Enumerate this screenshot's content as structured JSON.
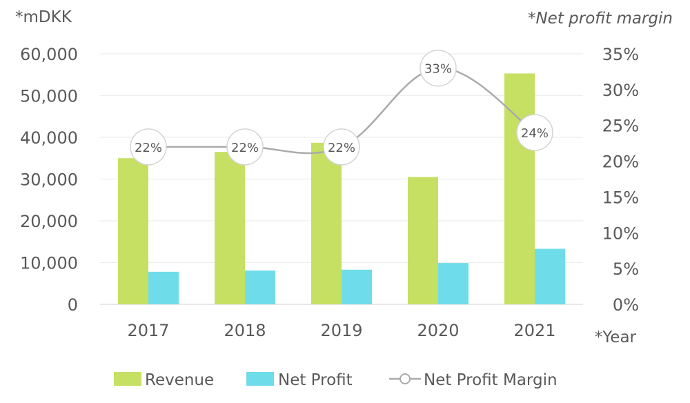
{
  "chart_data": {
    "type": "bar",
    "categories": [
      "2017",
      "2018",
      "2019",
      "2020",
      "2021"
    ],
    "series": [
      {
        "name": "Revenue",
        "type": "bar",
        "axis": "left",
        "color": "#c5e063",
        "values": [
          35000,
          36500,
          38700,
          30500,
          55300
        ]
      },
      {
        "name": "Net Profit",
        "type": "bar",
        "axis": "left",
        "color": "#6fdde9",
        "values": [
          7800,
          8100,
          8300,
          9900,
          13300
        ]
      },
      {
        "name": "Net Profit Margin",
        "type": "line",
        "axis": "right",
        "color": "#aaaaaa",
        "values": [
          22,
          22,
          22,
          33,
          24
        ]
      }
    ],
    "data_labels": [
      "22%",
      "22%",
      "22%",
      "33%",
      "24%"
    ],
    "y_left": {
      "label": "*mDKK",
      "ylim": [
        0,
        60000
      ],
      "ticks": [
        "0",
        "10,000",
        "20,000",
        "30,000",
        "40,000",
        "50,000",
        "60,000"
      ]
    },
    "y_right": {
      "label": "*Net profit margin",
      "ylim": [
        0,
        35
      ],
      "ticks": [
        "0%",
        "5%",
        "10%",
        "15%",
        "20%",
        "25%",
        "30%",
        "35%"
      ]
    },
    "xlabel": "*Year",
    "grid": true,
    "legend": "bottom"
  }
}
